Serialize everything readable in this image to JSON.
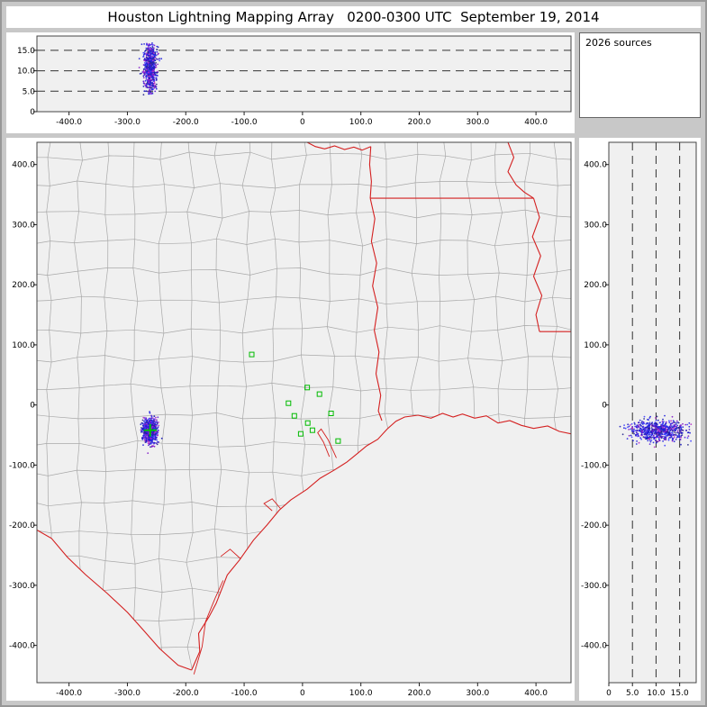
{
  "title": "Houston Lightning Mapping Array   0200-0300 UTC  September 19, 2014",
  "sources_label": "2026 sources",
  "colors": {
    "window_bg": "#c8c8c8",
    "panel_bg": "#ffffff",
    "plot_bg": "#f0f0f0",
    "plot_border": "#444444",
    "tick_line": "#222222",
    "dashed_line": "#333333",
    "county_line": "#a8a8a8",
    "state_line": "#d42020",
    "station_green": "#00bb00",
    "marker_green": "#00cc00",
    "source_palette": [
      "#2020dd",
      "#2020dd",
      "#1414bb",
      "#3d3dff",
      "#2020dd",
      "#5a20d8",
      "#8018c8",
      "#26268c",
      "#b428c8"
    ]
  },
  "chart_data": [
    {
      "id": "ew_altitude",
      "type": "scatter",
      "title": "East-West distance (km) vs altitude (km) projection of lightning sources",
      "xlim": [
        -455,
        460
      ],
      "ylim": [
        0,
        18.5
      ],
      "grid": "dashed-horizontal",
      "x_ticks": [
        {
          "v": -400,
          "label": "-400.0"
        },
        {
          "v": -300,
          "label": "-300.0"
        },
        {
          "v": -200,
          "label": "-200.0"
        },
        {
          "v": -100,
          "label": "-100.0"
        },
        {
          "v": 0,
          "label": "0"
        },
        {
          "v": 100,
          "label": "100.0"
        },
        {
          "v": 200,
          "label": "200.0"
        },
        {
          "v": 300,
          "label": "300.0"
        },
        {
          "v": 400,
          "label": "400.0"
        }
      ],
      "y_ticks": [
        {
          "v": 15,
          "label": "15.0"
        },
        {
          "v": 10,
          "label": "10.0"
        },
        {
          "v": 5,
          "label": "5.0"
        },
        {
          "v": 0,
          "label": "0"
        }
      ],
      "dashed_altitudes_km": [
        5,
        10,
        15
      ],
      "cluster": {
        "x_mean": -261,
        "x_sigma": 5.5,
        "alt_mean": 10.8,
        "alt_sigma": 3.0,
        "alt_min": 4.0,
        "alt_max": 16.8,
        "n": 650
      }
    },
    {
      "id": "plan_view",
      "type": "scatter",
      "title": "Plan view of lightning sources over Texas / Louisiana with county and state borders",
      "xlim": [
        -455,
        460
      ],
      "ylim": [
        -462,
        437
      ],
      "grid": "off",
      "x_ticks": [
        {
          "v": -400,
          "label": "-400.0"
        },
        {
          "v": -300,
          "label": "-300.0"
        },
        {
          "v": -200,
          "label": "-200.0"
        },
        {
          "v": -100,
          "label": "-100.0"
        },
        {
          "v": 0,
          "label": "0"
        },
        {
          "v": 100,
          "label": "100.0"
        },
        {
          "v": 200,
          "label": "200.0"
        },
        {
          "v": 300,
          "label": "300.0"
        },
        {
          "v": 400,
          "label": "400.0"
        }
      ],
      "y_ticks": [
        {
          "v": 400,
          "label": "400.0"
        },
        {
          "v": 300,
          "label": "300.0"
        },
        {
          "v": 200,
          "label": "200.0"
        },
        {
          "v": 100,
          "label": "100.0"
        },
        {
          "v": 0,
          "label": "0"
        },
        {
          "v": -100,
          "label": "-100.0"
        },
        {
          "v": -200,
          "label": "-200.0"
        },
        {
          "v": -300,
          "label": "-300.0"
        },
        {
          "v": -400,
          "label": "-400.0"
        }
      ],
      "cluster": {
        "x_mean": -261,
        "x_sigma": 6,
        "y_mean": -43,
        "y_sigma": 10,
        "n": 750
      },
      "flash_marker": {
        "x": -261,
        "y": -42
      },
      "stations_km": [
        [
          -87,
          84
        ],
        [
          8,
          29
        ],
        [
          29,
          18
        ],
        [
          -24,
          3
        ],
        [
          -14,
          -18
        ],
        [
          49,
          -14
        ],
        [
          -3,
          -48
        ],
        [
          17,
          -42
        ],
        [
          61,
          -60
        ],
        [
          9,
          -30
        ]
      ],
      "county_grid": {
        "spacing_km": 48,
        "jitter_km": 7
      },
      "geography": {
        "coastline": [
          [
            -190,
            -441
          ],
          [
            -176,
            -410
          ],
          [
            -178,
            -380
          ],
          [
            -160,
            -352
          ],
          [
            -148,
            -330
          ],
          [
            -129,
            -283
          ],
          [
            -108,
            -258
          ],
          [
            -84,
            -225
          ],
          [
            -61,
            -200
          ],
          [
            -40,
            -175
          ],
          [
            -20,
            -158
          ],
          [
            8,
            -140
          ],
          [
            30,
            -122
          ],
          [
            55,
            -108
          ],
          [
            76,
            -95
          ],
          [
            95,
            -80
          ],
          [
            110,
            -68
          ],
          [
            129,
            -57
          ],
          [
            145,
            -40
          ],
          [
            160,
            -27
          ],
          [
            175,
            -20
          ],
          [
            198,
            -17
          ],
          [
            220,
            -22
          ],
          [
            240,
            -14
          ],
          [
            258,
            -20
          ],
          [
            274,
            -15
          ],
          [
            295,
            -22
          ],
          [
            315,
            -18
          ],
          [
            335,
            -30
          ],
          [
            355,
            -26
          ],
          [
            375,
            -34
          ],
          [
            396,
            -39
          ],
          [
            420,
            -35
          ],
          [
            440,
            -44
          ],
          [
            460,
            -48
          ]
        ],
        "rio_grande_border": [
          [
            -455,
            -208
          ],
          [
            -430,
            -222
          ],
          [
            -403,
            -253
          ],
          [
            -372,
            -282
          ],
          [
            -335,
            -313
          ],
          [
            -300,
            -345
          ],
          [
            -274,
            -373
          ],
          [
            -245,
            -405
          ],
          [
            -213,
            -433
          ],
          [
            -190,
            -441
          ]
        ],
        "state_borders": [
          [
            [
              8,
              437
            ],
            [
              22,
              430
            ],
            [
              38,
              426
            ],
            [
              55,
              431
            ],
            [
              72,
              425
            ],
            [
              88,
              429
            ],
            [
              102,
              424
            ],
            [
              117,
              430
            ]
          ],
          [
            [
              117,
              430
            ],
            [
              115,
              400
            ],
            [
              118,
              372
            ],
            [
              116,
              344
            ]
          ],
          [
            [
              116,
              344
            ],
            [
              180,
              344
            ],
            [
              250,
              344
            ],
            [
              320,
              344
            ],
            [
              396,
              344
            ]
          ],
          [
            [
              352,
              437
            ],
            [
              362,
              412
            ],
            [
              352,
              388
            ],
            [
              366,
              366
            ],
            [
              380,
              354
            ],
            [
              396,
              344
            ]
          ],
          [
            [
              396,
              344
            ],
            [
              406,
              312
            ],
            [
              394,
              280
            ],
            [
              408,
              248
            ],
            [
              396,
              214
            ],
            [
              410,
              182
            ],
            [
              400,
              150
            ],
            [
              406,
              122
            ]
          ],
          [
            [
              406,
              122
            ],
            [
              460,
              122
            ]
          ],
          [
            [
              116,
              344
            ],
            [
              124,
              310
            ],
            [
              118,
              272
            ],
            [
              127,
              236
            ],
            [
              120,
              198
            ],
            [
              129,
              162
            ],
            [
              123,
              124
            ],
            [
              131,
              88
            ],
            [
              126,
              52
            ],
            [
              134,
              16
            ],
            [
              130,
              -10
            ],
            [
              136,
              -26
            ]
          ]
        ],
        "bays": [
          [
            [
              58,
              -88
            ],
            [
              44,
              -58
            ],
            [
              32,
              -40
            ],
            [
              26,
              -46
            ],
            [
              36,
              -62
            ],
            [
              46,
              -86
            ]
          ],
          [
            [
              -38,
              -172
            ],
            [
              -52,
              -156
            ],
            [
              -66,
              -164
            ],
            [
              -52,
              -176
            ]
          ],
          [
            [
              -106,
              -256
            ],
            [
              -124,
              -240
            ],
            [
              -140,
              -252
            ]
          ]
        ],
        "barrier_islands": [
          [
            [
              -186,
              -448
            ],
            [
              -172,
              -402
            ],
            [
              -166,
              -360
            ],
            [
              -150,
              -322
            ],
            [
              -136,
              -292
            ]
          ]
        ]
      }
    },
    {
      "id": "ns_altitude",
      "type": "scatter",
      "title": "Altitude (km) vs North-South distance (km) projection of lightning sources",
      "xlim": [
        0,
        18.5
      ],
      "ylim": [
        -462,
        437
      ],
      "grid": "dashed-vertical",
      "x_ticks": [
        {
          "v": 0,
          "label": "0"
        },
        {
          "v": 5,
          "label": "5.0"
        },
        {
          "v": 10,
          "label": "10.0"
        },
        {
          "v": 15,
          "label": "15.0"
        }
      ],
      "y_ticks": [
        {
          "v": 400,
          "label": "400.0"
        },
        {
          "v": 300,
          "label": "300.0"
        },
        {
          "v": 200,
          "label": "200.0"
        },
        {
          "v": 100,
          "label": "100.0"
        },
        {
          "v": 0,
          "label": "0"
        },
        {
          "v": -100,
          "label": "-100.0"
        },
        {
          "v": -200,
          "label": "-200.0"
        },
        {
          "v": -300,
          "label": "-300.0"
        },
        {
          "v": -400,
          "label": "-400.0"
        }
      ],
      "dashed_altitudes_km": [
        5,
        10,
        15
      ],
      "cluster": {
        "y_mean": -43,
        "y_sigma": 9,
        "alt_mean": 10.5,
        "alt_sigma": 3.2,
        "alt_min": 2.0,
        "alt_max": 17.5,
        "n": 650
      }
    }
  ]
}
